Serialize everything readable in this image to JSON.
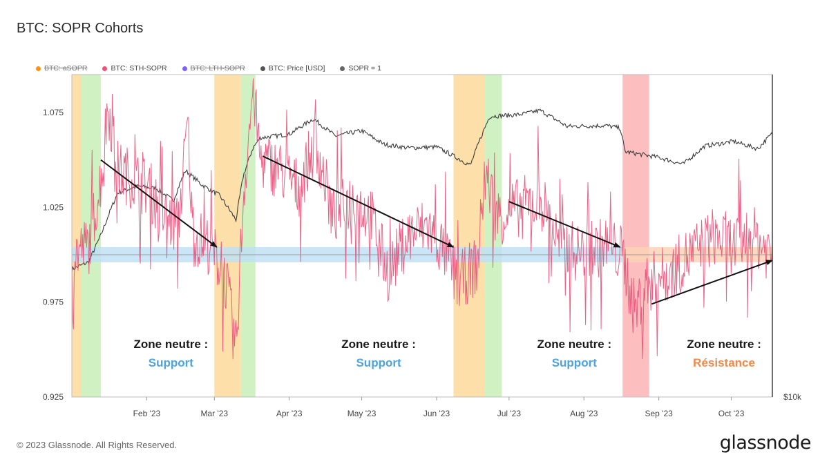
{
  "title": "BTC: SOPR Cohorts",
  "footer": {
    "copyright": "© 2023 Glassnode. All Rights Reserved.",
    "logo": "glassnode"
  },
  "legend": [
    {
      "label": "BTC: aSOPR",
      "color": "#f7931a",
      "hidden": true
    },
    {
      "label": "BTC: STH-SOPR",
      "color": "#e8527a",
      "hidden": false
    },
    {
      "label": "BTC: LTH-SOPR",
      "color": "#7b61ff",
      "hidden": true
    },
    {
      "label": "BTC: Price [USD]",
      "color": "#555555",
      "hidden": false
    },
    {
      "label": "SOPR = 1",
      "color": "#666666",
      "hidden": false
    }
  ],
  "colors": {
    "sth": "#e8527a",
    "price": "#3a3a3a",
    "orange_band": "#fbd99a",
    "green_band": "#c8efb6",
    "red_band": "#fbb3b3",
    "support_zone": "#bfe0f5",
    "resistance_zone": "#fbd2b8",
    "support_text": "#4ba3e0",
    "resistance_text": "#f08a4b"
  },
  "chart_data": {
    "type": "line",
    "x_range": [
      "2023-01-01",
      "2023-10-18"
    ],
    "ylim": [
      0.925,
      1.095
    ],
    "y_ticks": [
      "0.925",
      "0.975",
      "1.025",
      "1.075"
    ],
    "y2_label": "$10k",
    "x_ticks": [
      "Feb '23",
      "Mar '23",
      "Apr '23",
      "May '23",
      "Jun '23",
      "Jul '23",
      "Aug '23",
      "Sep '23",
      "Oct '23"
    ],
    "series": [
      {
        "name": "BTC: STH-SOPR",
        "points": [
          [
            "2023-01-01",
            1.0
          ],
          [
            "2023-01-08",
            1.005
          ],
          [
            "2023-01-13",
            1.04
          ],
          [
            "2023-01-16",
            1.08
          ],
          [
            "2023-01-20",
            1.045
          ],
          [
            "2023-01-26",
            1.04
          ],
          [
            "2023-02-02",
            1.035
          ],
          [
            "2023-02-08",
            1.02
          ],
          [
            "2023-02-14",
            1.015
          ],
          [
            "2023-02-18",
            1.07
          ],
          [
            "2023-02-20",
            1.01
          ],
          [
            "2023-02-27",
            1.005
          ],
          [
            "2023-03-03",
            0.995
          ],
          [
            "2023-03-06",
            0.985
          ],
          [
            "2023-03-10",
            0.95
          ],
          [
            "2023-03-13",
            1.03
          ],
          [
            "2023-03-17",
            1.09
          ],
          [
            "2023-03-20",
            1.05
          ],
          [
            "2023-03-28",
            1.045
          ],
          [
            "2023-04-05",
            1.035
          ],
          [
            "2023-04-12",
            1.06
          ],
          [
            "2023-04-19",
            1.02
          ],
          [
            "2023-04-27",
            1.03
          ],
          [
            "2023-05-05",
            1.02
          ],
          [
            "2023-05-12",
            0.99
          ],
          [
            "2023-05-20",
            1.01
          ],
          [
            "2023-05-28",
            1.015
          ],
          [
            "2023-06-05",
            1.0
          ],
          [
            "2023-06-10",
            0.985
          ],
          [
            "2023-06-18",
            0.995
          ],
          [
            "2023-06-21",
            1.045
          ],
          [
            "2023-06-26",
            1.02
          ],
          [
            "2023-07-05",
            1.025
          ],
          [
            "2023-07-14",
            1.03
          ],
          [
            "2023-07-22",
            1.005
          ],
          [
            "2023-08-01",
            1.0
          ],
          [
            "2023-08-10",
            1.005
          ],
          [
            "2023-08-17",
            1.0
          ],
          [
            "2023-08-22",
            0.97
          ],
          [
            "2023-08-27",
            0.985
          ],
          [
            "2023-09-05",
            0.99
          ],
          [
            "2023-09-14",
            1.0
          ],
          [
            "2023-09-24",
            1.01
          ],
          [
            "2023-10-02",
            1.005
          ],
          [
            "2023-10-10",
            1.01
          ],
          [
            "2023-10-18",
            1.0
          ]
        ]
      },
      {
        "name": "BTC: Price [USD]",
        "points": [
          [
            "2023-01-01",
            16600
          ],
          [
            "2023-01-08",
            17100
          ],
          [
            "2023-01-13",
            19000
          ],
          [
            "2023-01-20",
            22500
          ],
          [
            "2023-01-28",
            23100
          ],
          [
            "2023-02-05",
            22900
          ],
          [
            "2023-02-12",
            21800
          ],
          [
            "2023-02-17",
            24600
          ],
          [
            "2023-02-24",
            23200
          ],
          [
            "2023-03-03",
            22300
          ],
          [
            "2023-03-10",
            20200
          ],
          [
            "2023-03-13",
            24100
          ],
          [
            "2023-03-17",
            26900
          ],
          [
            "2023-03-20",
            28000
          ],
          [
            "2023-04-01",
            28400
          ],
          [
            "2023-04-11",
            30200
          ],
          [
            "2023-04-20",
            28200
          ],
          [
            "2023-05-01",
            28800
          ],
          [
            "2023-05-10",
            27300
          ],
          [
            "2023-05-20",
            26900
          ],
          [
            "2023-06-01",
            27000
          ],
          [
            "2023-06-15",
            25100
          ],
          [
            "2023-06-20",
            28500
          ],
          [
            "2023-06-23",
            30500
          ],
          [
            "2023-07-05",
            30700
          ],
          [
            "2023-07-14",
            31200
          ],
          [
            "2023-07-25",
            29300
          ],
          [
            "2023-08-10",
            29400
          ],
          [
            "2023-08-16",
            29100
          ],
          [
            "2023-08-18",
            26500
          ],
          [
            "2023-09-01",
            25900
          ],
          [
            "2023-09-11",
            25200
          ],
          [
            "2023-09-20",
            27100
          ],
          [
            "2023-10-02",
            27600
          ],
          [
            "2023-10-12",
            26800
          ],
          [
            "2023-10-18",
            28500
          ]
        ]
      }
    ],
    "bands": [
      {
        "color": "orange",
        "start": "2023-01-01",
        "end": "2023-01-05"
      },
      {
        "color": "green",
        "start": "2023-01-05",
        "end": "2023-01-13"
      },
      {
        "color": "orange",
        "start": "2023-03-01",
        "end": "2023-03-12"
      },
      {
        "color": "green",
        "start": "2023-03-12",
        "end": "2023-03-18"
      },
      {
        "color": "orange",
        "start": "2023-06-08",
        "end": "2023-06-21"
      },
      {
        "color": "green",
        "start": "2023-06-21",
        "end": "2023-06-28"
      },
      {
        "color": "red",
        "start": "2023-08-17",
        "end": "2023-08-28"
      }
    ],
    "neutral_zones": [
      {
        "type": "support",
        "start": "2023-01-01",
        "end": "2023-08-17",
        "y_low": 0.996,
        "y_high": 1.004
      },
      {
        "type": "resistance",
        "start": "2023-08-17",
        "end": "2023-10-18",
        "y_low": 0.996,
        "y_high": 1.004
      }
    ],
    "reference_line": {
      "label": "SOPR = 1",
      "y": 1.0
    },
    "arrows": [
      {
        "from": [
          "2023-01-13",
          1.05
        ],
        "to": [
          "2023-03-02",
          1.004
        ]
      },
      {
        "from": [
          "2023-03-21",
          1.052
        ],
        "to": [
          "2023-06-08",
          1.004
        ]
      },
      {
        "from": [
          "2023-07-01",
          1.028
        ],
        "to": [
          "2023-08-16",
          1.004
        ]
      },
      {
        "from": [
          "2023-08-29",
          0.974
        ],
        "to": [
          "2023-10-18",
          0.997
        ]
      }
    ],
    "annotations": [
      {
        "title": "Zone neutre :",
        "label": "Support",
        "kind": "support",
        "x": "2023-02-11"
      },
      {
        "title": "Zone neutre :",
        "label": "Support",
        "kind": "support",
        "x": "2023-05-08"
      },
      {
        "title": "Zone neutre :",
        "label": "Support",
        "kind": "support",
        "x": "2023-07-28"
      },
      {
        "title": "Zone neutre :",
        "label": "Résistance",
        "kind": "resistance",
        "x": "2023-09-28"
      }
    ]
  }
}
